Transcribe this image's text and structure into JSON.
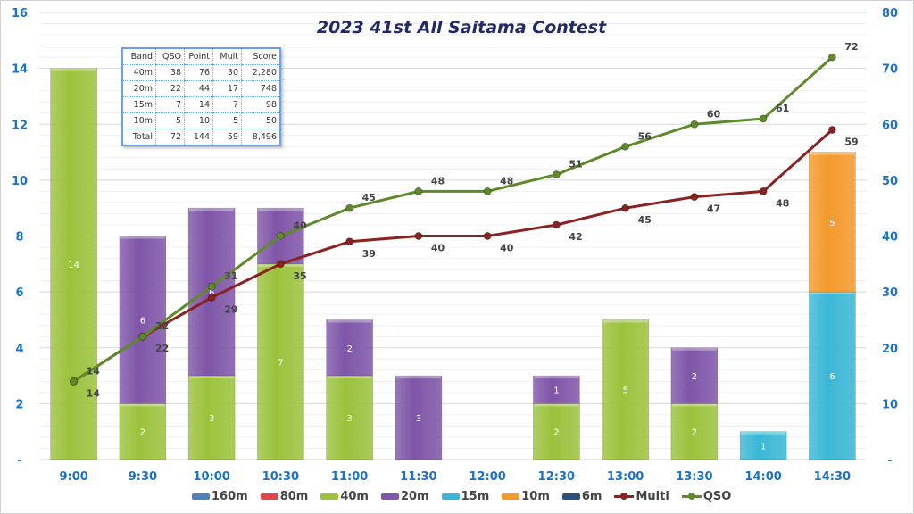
{
  "chart_data": {
    "type": "bar",
    "stacked": true,
    "title": "2023 41st All Saitama Contest",
    "categories": [
      "9:00",
      "9:30",
      "10:00",
      "10:30",
      "11:00",
      "11:30",
      "12:00",
      "12:30",
      "13:00",
      "13:30",
      "14:00",
      "14:30"
    ],
    "y_left": {
      "range": [
        0,
        16
      ],
      "ticks": [
        "-",
        "2",
        "4",
        "6",
        "8",
        "10",
        "12",
        "14",
        "16"
      ]
    },
    "y_right": {
      "range": [
        0,
        80
      ],
      "ticks": [
        "-",
        "10",
        "20",
        "30",
        "40",
        "50",
        "60",
        "70",
        "80"
      ]
    },
    "grid": true,
    "legend_position": "bottom",
    "series": [
      {
        "name": "160m",
        "type": "bar",
        "color": "#4f81bd",
        "values": [
          0,
          0,
          0,
          0,
          0,
          0,
          0,
          0,
          0,
          0,
          0,
          0
        ]
      },
      {
        "name": "80m",
        "type": "bar",
        "color": "#e04848",
        "values": [
          0,
          0,
          0,
          0,
          0,
          0,
          0,
          0,
          0,
          0,
          0,
          0
        ]
      },
      {
        "name": "40m",
        "type": "bar",
        "color": "#9bc23c",
        "values": [
          14,
          2,
          3,
          7,
          3,
          0,
          0,
          2,
          5,
          2,
          0,
          0
        ]
      },
      {
        "name": "20m",
        "type": "bar",
        "color": "#7f55a8",
        "values": [
          0,
          6,
          6,
          2,
          2,
          3,
          0,
          1,
          0,
          2,
          0,
          0
        ]
      },
      {
        "name": "15m",
        "type": "bar",
        "color": "#3ab7d6",
        "values": [
          0,
          0,
          0,
          0,
          0,
          0,
          0,
          0,
          0,
          0,
          1,
          6
        ]
      },
      {
        "name": "10m",
        "type": "bar",
        "color": "#f49a2a",
        "values": [
          0,
          0,
          0,
          0,
          0,
          0,
          0,
          0,
          0,
          0,
          0,
          5
        ]
      },
      {
        "name": "6m",
        "type": "bar",
        "color": "#2a4f80",
        "values": [
          0,
          0,
          0,
          0,
          0,
          0,
          0,
          0,
          0,
          0,
          0,
          0
        ]
      },
      {
        "name": "Multi",
        "type": "line",
        "axis": "right",
        "color": "#8b2222",
        "values": [
          14,
          22,
          29,
          35,
          39,
          40,
          40,
          42,
          45,
          47,
          48,
          59
        ]
      },
      {
        "name": "QSO",
        "type": "line",
        "axis": "right",
        "color": "#5f8a2a",
        "values": [
          14,
          22,
          31,
          40,
          45,
          48,
          48,
          51,
          56,
          60,
          61,
          72
        ]
      }
    ]
  },
  "summary_table": {
    "headers": [
      "Band",
      "QSO",
      "Point",
      "Mult",
      "Score"
    ],
    "rows": [
      [
        "40m",
        "38",
        "76",
        "30",
        "2,280"
      ],
      [
        "20m",
        "22",
        "44",
        "17",
        "748"
      ],
      [
        "15m",
        "7",
        "14",
        "7",
        "98"
      ],
      [
        "10m",
        "5",
        "10",
        "5",
        "50"
      ],
      [
        "Total",
        "72",
        "144",
        "59",
        "8,496"
      ]
    ]
  }
}
